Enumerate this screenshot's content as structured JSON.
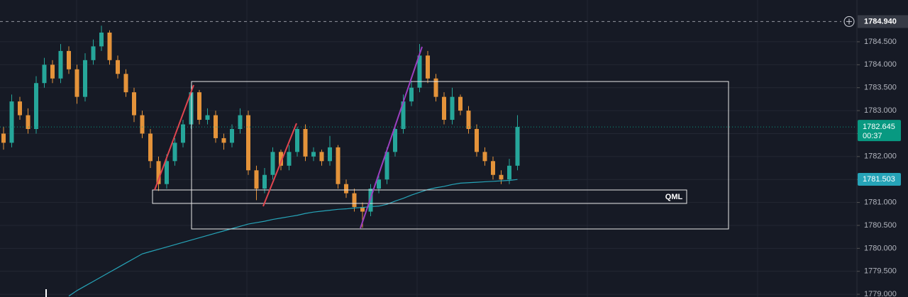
{
  "chart_data": {
    "type": "candlestick",
    "up_color": "#26a69a",
    "down_color": "#e4933a",
    "grid": true,
    "open": [
      1782.5,
      1782.3,
      1783.2,
      1782.9,
      1782.6,
      1783.6,
      1784.0,
      1783.7,
      1784.3,
      1783.9,
      1783.3,
      1784.1,
      1784.4,
      1784.7,
      1784.1,
      1783.8,
      1783.4,
      1782.9,
      1782.5,
      1781.9,
      1781.4,
      1781.9,
      1782.3,
      1782.7,
      1783.4,
      1782.8,
      1782.9,
      1782.4,
      1782.3,
      1782.6,
      1782.9,
      1781.7,
      1781.3,
      1781.6,
      1782.1,
      1781.8,
      1782.1,
      1782.6,
      1782.0,
      1782.1,
      1781.9,
      1782.2,
      1781.4,
      1781.2,
      1780.9,
      1780.8,
      1781.3,
      1781.5,
      1782.1,
      1782.6,
      1783.2,
      1783.5,
      1784.2,
      1783.7,
      1783.3,
      1782.8,
      1783.3,
      1783.0,
      1782.6,
      1782.1,
      1781.9,
      1781.6,
      1781.5,
      1781.8
    ],
    "high": [
      1782.65,
      1783.35,
      1783.3,
      1783.05,
      1783.75,
      1784.15,
      1784.1,
      1784.45,
      1784.4,
      1784.0,
      1784.25,
      1784.55,
      1784.85,
      1784.75,
      1784.2,
      1783.9,
      1783.5,
      1783.0,
      1782.6,
      1782.0,
      1782.05,
      1782.4,
      1782.8,
      1783.55,
      1783.45,
      1783.05,
      1783.0,
      1782.5,
      1782.7,
      1783.05,
      1783.0,
      1781.8,
      1781.75,
      1782.2,
      1782.15,
      1782.25,
      1782.65,
      1782.7,
      1782.2,
      1782.15,
      1782.45,
      1782.25,
      1781.5,
      1781.3,
      1781.0,
      1781.4,
      1781.6,
      1782.2,
      1782.7,
      1783.35,
      1783.65,
      1784.45,
      1784.3,
      1783.8,
      1783.4,
      1783.5,
      1783.35,
      1783.1,
      1782.7,
      1782.2,
      1782.0,
      1781.7,
      1781.95,
      1782.9
    ],
    "low": [
      1782.15,
      1782.2,
      1782.8,
      1782.5,
      1782.5,
      1783.5,
      1783.6,
      1783.6,
      1783.8,
      1783.15,
      1783.2,
      1784.0,
      1784.3,
      1784.0,
      1783.7,
      1783.3,
      1782.75,
      1782.4,
      1781.75,
      1781.25,
      1781.3,
      1781.8,
      1782.2,
      1782.6,
      1782.7,
      1782.7,
      1782.3,
      1782.15,
      1782.2,
      1782.5,
      1781.6,
      1781.05,
      1781.2,
      1781.5,
      1781.7,
      1781.7,
      1782.0,
      1781.9,
      1781.9,
      1781.8,
      1781.8,
      1781.3,
      1781.1,
      1780.8,
      1780.45,
      1780.7,
      1781.2,
      1781.4,
      1782.0,
      1782.5,
      1783.1,
      1783.4,
      1783.6,
      1783.2,
      1782.7,
      1782.7,
      1782.9,
      1782.5,
      1782.0,
      1781.8,
      1781.5,
      1781.4,
      1781.4,
      1781.7
    ],
    "close": [
      1782.3,
      1783.2,
      1782.9,
      1782.6,
      1783.6,
      1784.0,
      1783.7,
      1784.3,
      1783.9,
      1783.3,
      1784.1,
      1784.4,
      1784.7,
      1784.1,
      1783.8,
      1783.4,
      1782.9,
      1782.5,
      1781.9,
      1781.4,
      1781.9,
      1782.3,
      1782.7,
      1783.4,
      1782.8,
      1782.9,
      1782.4,
      1782.3,
      1782.6,
      1782.9,
      1781.7,
      1781.3,
      1781.6,
      1782.1,
      1781.8,
      1782.1,
      1782.6,
      1782.0,
      1782.1,
      1781.9,
      1782.2,
      1781.4,
      1781.2,
      1780.9,
      1780.8,
      1781.3,
      1781.5,
      1782.1,
      1782.6,
      1783.2,
      1783.5,
      1784.2,
      1783.7,
      1783.3,
      1782.8,
      1783.3,
      1783.0,
      1782.6,
      1782.1,
      1781.9,
      1781.6,
      1781.5,
      1781.8,
      1782.645
    ],
    "ma": {
      "color": "#26a4b8",
      "values": [
        null,
        null,
        null,
        null,
        null,
        null,
        null,
        null,
        1778.96,
        1779.08,
        1779.18,
        1779.28,
        1779.38,
        1779.48,
        1779.58,
        1779.68,
        1779.78,
        1779.88,
        1779.93,
        1779.98,
        1780.03,
        1780.08,
        1780.13,
        1780.18,
        1780.23,
        1780.28,
        1780.33,
        1780.38,
        1780.43,
        1780.48,
        1780.53,
        1780.56,
        1780.59,
        1780.63,
        1780.66,
        1780.69,
        1780.72,
        1780.76,
        1780.79,
        1780.81,
        1780.83,
        1780.85,
        1780.86,
        1780.88,
        1780.89,
        1780.91,
        1780.92,
        1780.96,
        1781.03,
        1781.09,
        1781.16,
        1781.22,
        1781.28,
        1781.32,
        1781.35,
        1781.39,
        1781.42,
        1781.43,
        1781.44,
        1781.45,
        1781.46,
        1781.47,
        1781.48,
        1781.5
      ]
    },
    "ylim": [
      1778.94,
      1785.41
    ],
    "yticks": [
      {
        "value": 1784.5,
        "label": "1784.500"
      },
      {
        "value": 1784.0,
        "label": "1784.000"
      },
      {
        "value": 1783.5,
        "label": "1783.500"
      },
      {
        "value": 1783.0,
        "label": "1783.000"
      },
      {
        "value": 1782.5,
        "label": "1782.500"
      },
      {
        "value": 1782.0,
        "label": "1782.000"
      },
      {
        "value": 1781.5,
        "label": "1781.500"
      },
      {
        "value": 1781.0,
        "label": "1781.000"
      },
      {
        "value": 1780.5,
        "label": "1780.500"
      },
      {
        "value": 1780.0,
        "label": "1780.000"
      },
      {
        "value": 1779.5,
        "label": "1779.500"
      },
      {
        "value": 1779.0,
        "label": "1779.000"
      }
    ],
    "crosshair_price": {
      "value": 1784.94,
      "label": "1784.940"
    },
    "last_price": 1782.645,
    "last_price_color": "#089981",
    "countdown": "00:37",
    "ma_last": 1781.503,
    "annotation": "QML"
  }
}
